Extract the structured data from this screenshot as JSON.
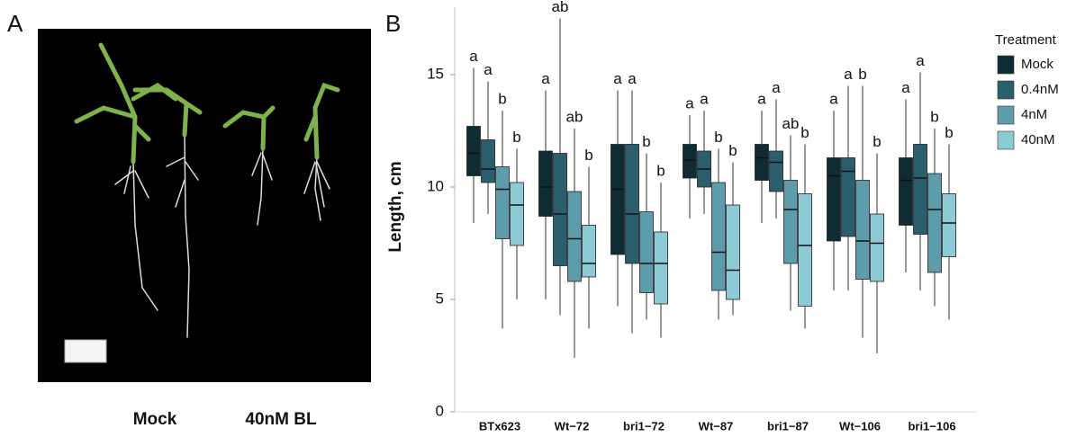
{
  "panel_a": {
    "label": "A",
    "captions": [
      "Mock",
      "40nM BL"
    ]
  },
  "chart_data": {
    "type": "box",
    "panel_label": "B",
    "y_label": "Length, cm",
    "legend_title": "Treatment",
    "categories": [
      "BTx623",
      "Wt−72",
      "bri1−72",
      "Wt−87",
      "bri1−87",
      "Wt−106",
      "bri1−106"
    ],
    "ylim": [
      0,
      18
    ],
    "yticks": [
      0,
      5,
      10,
      15
    ],
    "legend": "right",
    "series": [
      {
        "name": "Mock",
        "color": "#0f2c35",
        "letters": [
          "a",
          "a",
          "a",
          "a",
          "a",
          "a",
          "a"
        ],
        "values": [
          {
            "min": 8.4,
            "q1": 10.5,
            "median": 11.5,
            "q3": 12.7,
            "max": 15.3
          },
          {
            "min": 5.0,
            "q1": 8.7,
            "median": 10.0,
            "q3": 11.6,
            "max": 14.3
          },
          {
            "min": 4.7,
            "q1": 7.0,
            "median": 9.9,
            "q3": 11.9,
            "max": 14.3
          },
          {
            "min": 8.6,
            "q1": 10.4,
            "median": 11.2,
            "q3": 11.9,
            "max": 13.2
          },
          {
            "min": 8.4,
            "q1": 10.3,
            "median": 11.3,
            "q3": 11.9,
            "max": 13.4
          },
          {
            "min": 5.4,
            "q1": 7.6,
            "median": 10.5,
            "q3": 11.3,
            "max": 13.4
          },
          {
            "min": 6.2,
            "q1": 8.3,
            "median": 10.3,
            "q3": 11.3,
            "max": 13.9
          }
        ]
      },
      {
        "name": "0.4nM",
        "color": "#2b5f6d",
        "letters": [
          "a",
          "ab",
          "a",
          "a",
          "a",
          "a",
          "a"
        ],
        "values": [
          {
            "min": 8.8,
            "q1": 10.2,
            "median": 10.8,
            "q3": 12.1,
            "max": 14.7
          },
          {
            "min": 4.3,
            "q1": 6.5,
            "median": 8.8,
            "q3": 11.5,
            "max": 17.5
          },
          {
            "min": 3.5,
            "q1": 6.6,
            "median": 8.8,
            "q3": 11.9,
            "max": 14.3
          },
          {
            "min": 8.8,
            "q1": 10.0,
            "median": 10.8,
            "q3": 11.6,
            "max": 13.4
          },
          {
            "min": 8.6,
            "q1": 9.8,
            "median": 11.1,
            "q3": 11.6,
            "max": 13.9
          },
          {
            "min": 5.4,
            "q1": 7.8,
            "median": 10.7,
            "q3": 11.3,
            "max": 14.5
          },
          {
            "min": 5.4,
            "q1": 7.9,
            "median": 10.4,
            "q3": 11.9,
            "max": 15.1
          }
        ]
      },
      {
        "name": "4nM",
        "color": "#5e9cab",
        "letters": [
          "b",
          "ab",
          "b",
          "b",
          "ab",
          "b",
          "b"
        ],
        "values": [
          {
            "min": 3.7,
            "q1": 7.7,
            "median": 9.9,
            "q3": 10.9,
            "max": 13.4
          },
          {
            "min": 2.4,
            "q1": 5.8,
            "median": 7.7,
            "q3": 9.8,
            "max": 12.6
          },
          {
            "min": 4.1,
            "q1": 5.3,
            "median": 6.6,
            "q3": 8.9,
            "max": 11.5
          },
          {
            "min": 4.1,
            "q1": 5.4,
            "median": 7.1,
            "q3": 10.2,
            "max": 11.7
          },
          {
            "min": 4.5,
            "q1": 6.6,
            "median": 9.0,
            "q3": 10.3,
            "max": 12.3
          },
          {
            "min": 3.3,
            "q1": 5.9,
            "median": 7.6,
            "q3": 10.3,
            "max": 14.5
          },
          {
            "min": 4.7,
            "q1": 6.2,
            "median": 9.0,
            "q3": 10.6,
            "max": 12.6
          }
        ]
      },
      {
        "name": "40nM",
        "color": "#8ecad6",
        "letters": [
          "b",
          "b",
          "b",
          "b",
          "b",
          "b",
          "b"
        ],
        "values": [
          {
            "min": 5.0,
            "q1": 7.4,
            "median": 9.2,
            "q3": 10.2,
            "max": 11.7
          },
          {
            "min": 3.7,
            "q1": 6.0,
            "median": 6.6,
            "q3": 8.3,
            "max": 10.9
          },
          {
            "min": 3.3,
            "q1": 4.8,
            "median": 6.6,
            "q3": 8.0,
            "max": 10.2
          },
          {
            "min": 4.3,
            "q1": 5.0,
            "median": 6.3,
            "q3": 9.2,
            "max": 11.1
          },
          {
            "min": 3.7,
            "q1": 4.7,
            "median": 7.4,
            "q3": 9.7,
            "max": 11.9
          },
          {
            "min": 2.6,
            "q1": 5.8,
            "median": 7.5,
            "q3": 8.8,
            "max": 11.5
          },
          {
            "min": 4.1,
            "q1": 6.9,
            "median": 8.4,
            "q3": 9.7,
            "max": 11.9
          }
        ]
      }
    ]
  }
}
